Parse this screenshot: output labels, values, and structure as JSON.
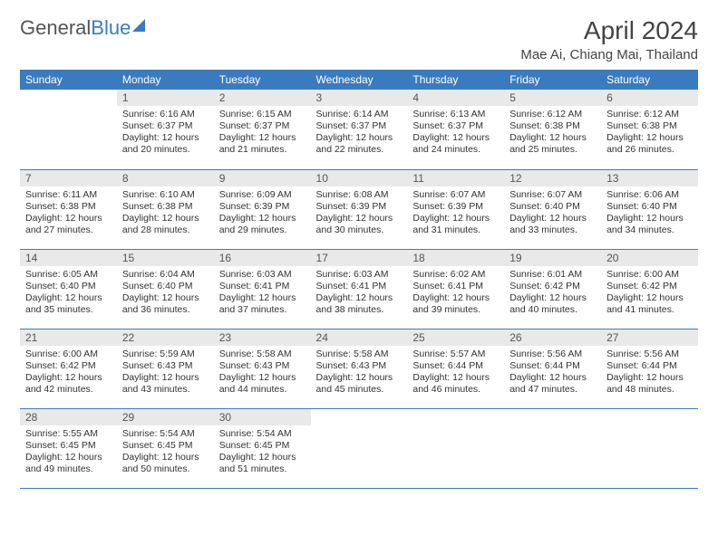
{
  "logo": {
    "part1": "General",
    "part2": "Blue"
  },
  "header": {
    "title": "April 2024",
    "location": "Mae Ai, Chiang Mai, Thailand"
  },
  "colors": {
    "accent": "#3a7bbf",
    "daynum_bg": "#e9e9e9",
    "text": "#333333",
    "background": "#ffffff"
  },
  "calendar": {
    "days_of_week": [
      "Sunday",
      "Monday",
      "Tuesday",
      "Wednesday",
      "Thursday",
      "Friday",
      "Saturday"
    ],
    "weeks": [
      [
        null,
        {
          "n": "1",
          "sr": "6:16 AM",
          "ss": "6:37 PM",
          "dl": "12 hours and 20 minutes."
        },
        {
          "n": "2",
          "sr": "6:15 AM",
          "ss": "6:37 PM",
          "dl": "12 hours and 21 minutes."
        },
        {
          "n": "3",
          "sr": "6:14 AM",
          "ss": "6:37 PM",
          "dl": "12 hours and 22 minutes."
        },
        {
          "n": "4",
          "sr": "6:13 AM",
          "ss": "6:37 PM",
          "dl": "12 hours and 24 minutes."
        },
        {
          "n": "5",
          "sr": "6:12 AM",
          "ss": "6:38 PM",
          "dl": "12 hours and 25 minutes."
        },
        {
          "n": "6",
          "sr": "6:12 AM",
          "ss": "6:38 PM",
          "dl": "12 hours and 26 minutes."
        }
      ],
      [
        {
          "n": "7",
          "sr": "6:11 AM",
          "ss": "6:38 PM",
          "dl": "12 hours and 27 minutes."
        },
        {
          "n": "8",
          "sr": "6:10 AM",
          "ss": "6:38 PM",
          "dl": "12 hours and 28 minutes."
        },
        {
          "n": "9",
          "sr": "6:09 AM",
          "ss": "6:39 PM",
          "dl": "12 hours and 29 minutes."
        },
        {
          "n": "10",
          "sr": "6:08 AM",
          "ss": "6:39 PM",
          "dl": "12 hours and 30 minutes."
        },
        {
          "n": "11",
          "sr": "6:07 AM",
          "ss": "6:39 PM",
          "dl": "12 hours and 31 minutes."
        },
        {
          "n": "12",
          "sr": "6:07 AM",
          "ss": "6:40 PM",
          "dl": "12 hours and 33 minutes."
        },
        {
          "n": "13",
          "sr": "6:06 AM",
          "ss": "6:40 PM",
          "dl": "12 hours and 34 minutes."
        }
      ],
      [
        {
          "n": "14",
          "sr": "6:05 AM",
          "ss": "6:40 PM",
          "dl": "12 hours and 35 minutes."
        },
        {
          "n": "15",
          "sr": "6:04 AM",
          "ss": "6:40 PM",
          "dl": "12 hours and 36 minutes."
        },
        {
          "n": "16",
          "sr": "6:03 AM",
          "ss": "6:41 PM",
          "dl": "12 hours and 37 minutes."
        },
        {
          "n": "17",
          "sr": "6:03 AM",
          "ss": "6:41 PM",
          "dl": "12 hours and 38 minutes."
        },
        {
          "n": "18",
          "sr": "6:02 AM",
          "ss": "6:41 PM",
          "dl": "12 hours and 39 minutes."
        },
        {
          "n": "19",
          "sr": "6:01 AM",
          "ss": "6:42 PM",
          "dl": "12 hours and 40 minutes."
        },
        {
          "n": "20",
          "sr": "6:00 AM",
          "ss": "6:42 PM",
          "dl": "12 hours and 41 minutes."
        }
      ],
      [
        {
          "n": "21",
          "sr": "6:00 AM",
          "ss": "6:42 PM",
          "dl": "12 hours and 42 minutes."
        },
        {
          "n": "22",
          "sr": "5:59 AM",
          "ss": "6:43 PM",
          "dl": "12 hours and 43 minutes."
        },
        {
          "n": "23",
          "sr": "5:58 AM",
          "ss": "6:43 PM",
          "dl": "12 hours and 44 minutes."
        },
        {
          "n": "24",
          "sr": "5:58 AM",
          "ss": "6:43 PM",
          "dl": "12 hours and 45 minutes."
        },
        {
          "n": "25",
          "sr": "5:57 AM",
          "ss": "6:44 PM",
          "dl": "12 hours and 46 minutes."
        },
        {
          "n": "26",
          "sr": "5:56 AM",
          "ss": "6:44 PM",
          "dl": "12 hours and 47 minutes."
        },
        {
          "n": "27",
          "sr": "5:56 AM",
          "ss": "6:44 PM",
          "dl": "12 hours and 48 minutes."
        }
      ],
      [
        {
          "n": "28",
          "sr": "5:55 AM",
          "ss": "6:45 PM",
          "dl": "12 hours and 49 minutes."
        },
        {
          "n": "29",
          "sr": "5:54 AM",
          "ss": "6:45 PM",
          "dl": "12 hours and 50 minutes."
        },
        {
          "n": "30",
          "sr": "5:54 AM",
          "ss": "6:45 PM",
          "dl": "12 hours and 51 minutes."
        },
        null,
        null,
        null,
        null
      ]
    ],
    "labels": {
      "sunrise": "Sunrise:",
      "sunset": "Sunset:",
      "daylight": "Daylight:"
    }
  }
}
